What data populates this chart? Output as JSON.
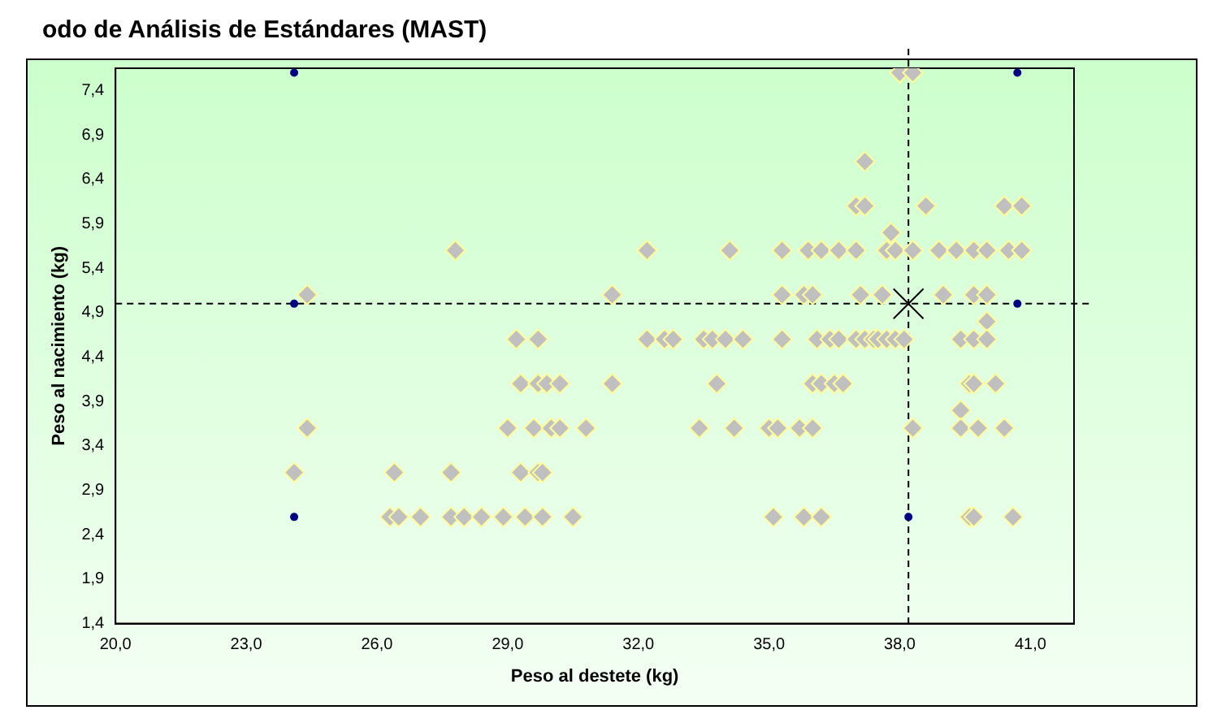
{
  "chart_data": {
    "type": "scatter",
    "title": "odo de Análisis de Estándares (MAST)",
    "xlabel": "Peso al destete (kg)",
    "ylabel": "Peso al nacimiento (kg)",
    "xlim": [
      20,
      42
    ],
    "ylim": [
      1.4,
      7.65
    ],
    "xticks": [
      {
        "value": 20,
        "label": "20,0"
      },
      {
        "value": 23,
        "label": "23,0"
      },
      {
        "value": 26,
        "label": "26,0"
      },
      {
        "value": 29,
        "label": "29,0"
      },
      {
        "value": 32,
        "label": "32,0"
      },
      {
        "value": 35,
        "label": "35,0"
      },
      {
        "value": 38,
        "label": "38,0"
      },
      {
        "value": 41,
        "label": "41,0"
      }
    ],
    "yticks": [
      {
        "value": 1.4,
        "label": "1,4"
      },
      {
        "value": 1.9,
        "label": "1,9"
      },
      {
        "value": 2.4,
        "label": "2,4"
      },
      {
        "value": 2.9,
        "label": "2,9"
      },
      {
        "value": 3.4,
        "label": "3,4"
      },
      {
        "value": 3.9,
        "label": "3,9"
      },
      {
        "value": 4.4,
        "label": "4,4"
      },
      {
        "value": 4.9,
        "label": "4,9"
      },
      {
        "value": 5.4,
        "label": "5,4"
      },
      {
        "value": 5.9,
        "label": "5,9"
      },
      {
        "value": 6.4,
        "label": "6,4"
      },
      {
        "value": 6.9,
        "label": "6,9"
      },
      {
        "value": 7.4,
        "label": "7,4"
      }
    ],
    "grid": false,
    "legend": false,
    "ref_lines": [
      {
        "axis": "x",
        "value": 38.2,
        "color": "#000000",
        "line_style": "dashed"
      },
      {
        "axis": "y",
        "value": 5.0,
        "color": "#000000",
        "line_style": "dashed"
      }
    ],
    "series": [
      {
        "color": "#c0c0c0",
        "marker": "diamond",
        "x": [
          27.8,
          32.2,
          34.1,
          24.4,
          31.4,
          29.2,
          29.7,
          32.2,
          32.6,
          32.8,
          33.5,
          33.7,
          34.0,
          34.4,
          29.3,
          29.7,
          29.9,
          30.2,
          31.4,
          33.8,
          24.4,
          29.0,
          29.6,
          30.0,
          30.2,
          30.8,
          33.4,
          34.2,
          24.1,
          26.4,
          27.7,
          29.3,
          29.7,
          29.8,
          26.3,
          26.5,
          27.0,
          27.7,
          28.0,
          28.4,
          28.9,
          29.4,
          29.8,
          30.5,
          38.0,
          38.3,
          37.2,
          37.0,
          37.2,
          38.6,
          40.4,
          40.8,
          37.8,
          35.3,
          35.9,
          36.2,
          36.6,
          37.0,
          37.7,
          37.9,
          38.3,
          38.9,
          39.3,
          39.7,
          40.0,
          40.5,
          40.8,
          35.3,
          35.8,
          36.0,
          37.1,
          37.6,
          39.0,
          39.7,
          40.0,
          40.0,
          35.3,
          36.1,
          36.4,
          36.6,
          37.0,
          37.2,
          37.4,
          37.5,
          37.7,
          37.9,
          38.1,
          39.4,
          39.7,
          40.0,
          36.0,
          36.2,
          36.5,
          36.7,
          39.6,
          39.7,
          40.2,
          39.4,
          35.0,
          35.2,
          35.7,
          36.0,
          38.3,
          39.4,
          39.8,
          40.4,
          35.1,
          35.8,
          36.2,
          39.6,
          39.7,
          40.6
        ],
        "values": [
          5.6,
          5.6,
          5.6,
          5.1,
          5.1,
          4.6,
          4.6,
          4.6,
          4.6,
          4.6,
          4.6,
          4.6,
          4.6,
          4.6,
          4.1,
          4.1,
          4.1,
          4.1,
          4.1,
          4.1,
          3.6,
          3.6,
          3.6,
          3.6,
          3.6,
          3.6,
          3.6,
          3.6,
          3.1,
          3.1,
          3.1,
          3.1,
          3.1,
          3.1,
          2.6,
          2.6,
          2.6,
          2.6,
          2.6,
          2.6,
          2.6,
          2.6,
          2.6,
          2.6,
          7.6,
          7.6,
          6.6,
          6.1,
          6.1,
          6.1,
          6.1,
          6.1,
          5.8,
          5.6,
          5.6,
          5.6,
          5.6,
          5.6,
          5.6,
          5.6,
          5.6,
          5.6,
          5.6,
          5.6,
          5.6,
          5.6,
          5.6,
          5.1,
          5.1,
          5.1,
          5.1,
          5.1,
          5.1,
          5.1,
          5.1,
          4.8,
          4.6,
          4.6,
          4.6,
          4.6,
          4.6,
          4.6,
          4.6,
          4.6,
          4.6,
          4.6,
          4.6,
          4.6,
          4.6,
          4.6,
          4.1,
          4.1,
          4.1,
          4.1,
          4.1,
          4.1,
          4.1,
          3.8,
          3.6,
          3.6,
          3.6,
          3.6,
          3.6,
          3.6,
          3.6,
          3.6,
          2.6,
          2.6,
          2.6,
          2.6,
          2.6,
          2.6
        ]
      },
      {
        "color": "#000080",
        "marker": "circle",
        "x": [
          24.1,
          24.1,
          24.1,
          40.7,
          40.7,
          38.2
        ],
        "values": [
          7.6,
          5.0,
          2.6,
          7.6,
          5.0,
          2.6
        ]
      },
      {
        "color": "#000000",
        "marker": "cross",
        "x": [
          38.2
        ],
        "values": [
          5.0
        ]
      }
    ]
  }
}
